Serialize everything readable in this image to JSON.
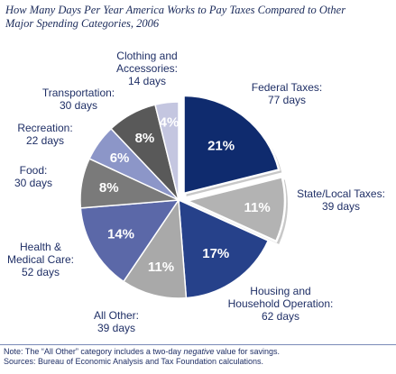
{
  "title_line1": "How Many Days Per Year America Works to Pay Taxes Compared to Other",
  "title_line2": "Major  Spending Categories, 2006",
  "chart_data": {
    "type": "pie",
    "title": "How Many Days Per Year America Works to Pay Taxes Compared to Other Major  Spending Categories, 2006",
    "slices": [
      {
        "label_lines": [
          "Federal Taxes:",
          "77 days"
        ],
        "days": 77,
        "percent_label": "21%",
        "value": 21,
        "color": "#0f2b6e",
        "text_color": "#ffffff",
        "exploded": true
      },
      {
        "label_lines": [
          "State/Local Taxes:",
          "39 days"
        ],
        "days": 39,
        "percent_label": "11%",
        "value": 11,
        "color": "#b3b3b3",
        "text_color": "#ffffff",
        "exploded": true
      },
      {
        "label_lines": [
          "Housing and",
          "Household Operation:",
          "62 days"
        ],
        "days": 62,
        "percent_label": "17%",
        "value": 17,
        "color": "#26418a",
        "text_color": "#ffffff",
        "exploded": false
      },
      {
        "label_lines": [
          "All Other:",
          "39 days"
        ],
        "days": 39,
        "percent_label": "11%",
        "value": 11,
        "color": "#a9a9a9",
        "text_color": "#ffffff",
        "exploded": false
      },
      {
        "label_lines": [
          "Health &",
          "Medical Care:",
          "52 days"
        ],
        "days": 52,
        "percent_label": "14%",
        "value": 14,
        "color": "#5b68a8",
        "text_color": "#ffffff",
        "exploded": false
      },
      {
        "label_lines": [
          "Food:",
          "30 days"
        ],
        "days": 30,
        "percent_label": "8%",
        "value": 8,
        "color": "#7a7a7a",
        "text_color": "#ffffff",
        "exploded": false
      },
      {
        "label_lines": [
          "Recreation:",
          "22 days"
        ],
        "days": 22,
        "percent_label": "6%",
        "value": 6,
        "color": "#8c96c8",
        "text_color": "#ffffff",
        "exploded": false
      },
      {
        "label_lines": [
          "Transportation:",
          "30 days"
        ],
        "days": 30,
        "percent_label": "8%",
        "value": 8,
        "color": "#595959",
        "text_color": "#ffffff",
        "exploded": false
      },
      {
        "label_lines": [
          "Clothing and",
          "Accessories:",
          "14 days"
        ],
        "days": 14,
        "percent_label": "4%",
        "value": 4,
        "color": "#c4c6e0",
        "text_color": "#ffffff",
        "exploded": false
      }
    ]
  },
  "footer": {
    "note_prefix": "Note: The “All Other” category includes a two-day ",
    "note_emphasis": "negative",
    "note_suffix": " value for savings.",
    "sources": "Sources: Bureau of Economic Analysis and Tax Foundation calculations."
  }
}
